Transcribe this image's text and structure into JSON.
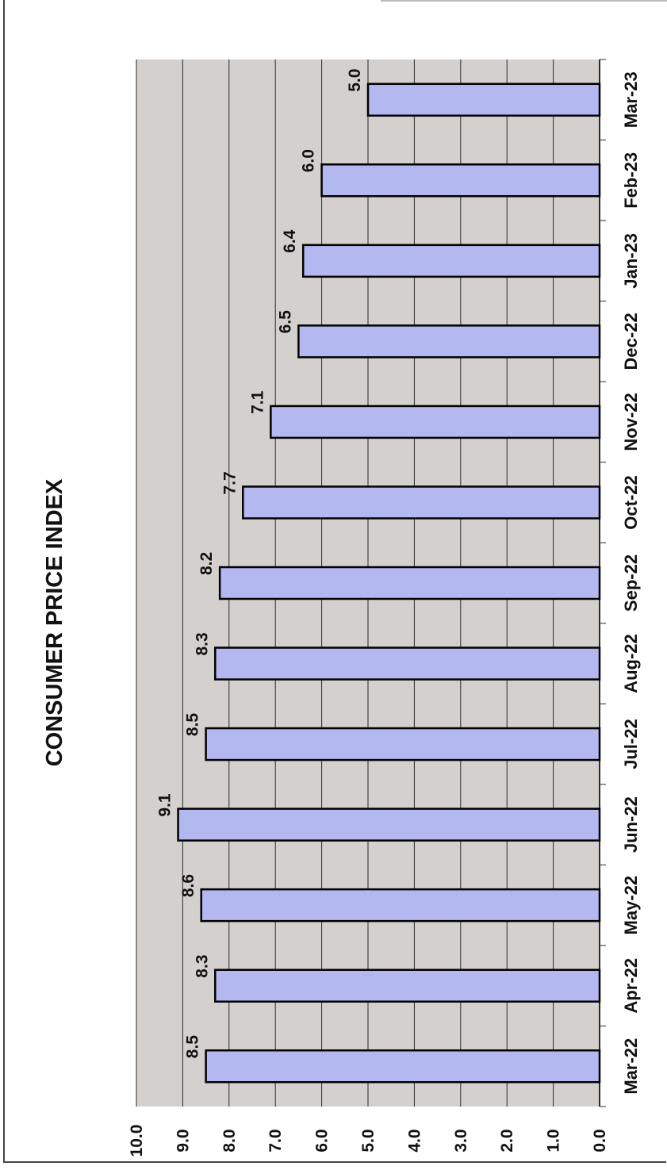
{
  "chart_data": {
    "type": "bar",
    "orientation": "horizontal, page rotated 90° clockwise",
    "title": "CONSUMER PRICE INDEX",
    "xlabel": "",
    "ylabel": "",
    "categories": [
      "Mar-22",
      "Apr-22",
      "May-22",
      "Jun-22",
      "Jul-22",
      "Aug-22",
      "Sep-22",
      "Oct-22",
      "Nov-22",
      "Dec-22",
      "Jan-23",
      "Feb-23",
      "Mar-23"
    ],
    "values": [
      8.5,
      8.3,
      8.6,
      9.1,
      8.5,
      8.3,
      8.2,
      7.7,
      7.1,
      6.5,
      6.4,
      6.0,
      5.0
    ],
    "value_labels": [
      "8.5",
      "8.3",
      "8.6",
      "9.1",
      "8.5",
      "8.3",
      "8.2",
      "7.7",
      "7.1",
      "6.5",
      "6.4",
      "6.0",
      "5.0"
    ],
    "ylim": [
      0,
      10
    ],
    "ticks": [
      "0.0",
      "1.0",
      "2.0",
      "3.0",
      "4.0",
      "5.0",
      "6.0",
      "7.0",
      "8.0",
      "9.0",
      "10.0"
    ],
    "grid": true,
    "legend": "none",
    "colors": {
      "bar_fill": "#b3b8f0",
      "bar_stroke": "#000000",
      "plot_bg": "#d4d0ce",
      "grid": "#2b2b2b"
    }
  }
}
